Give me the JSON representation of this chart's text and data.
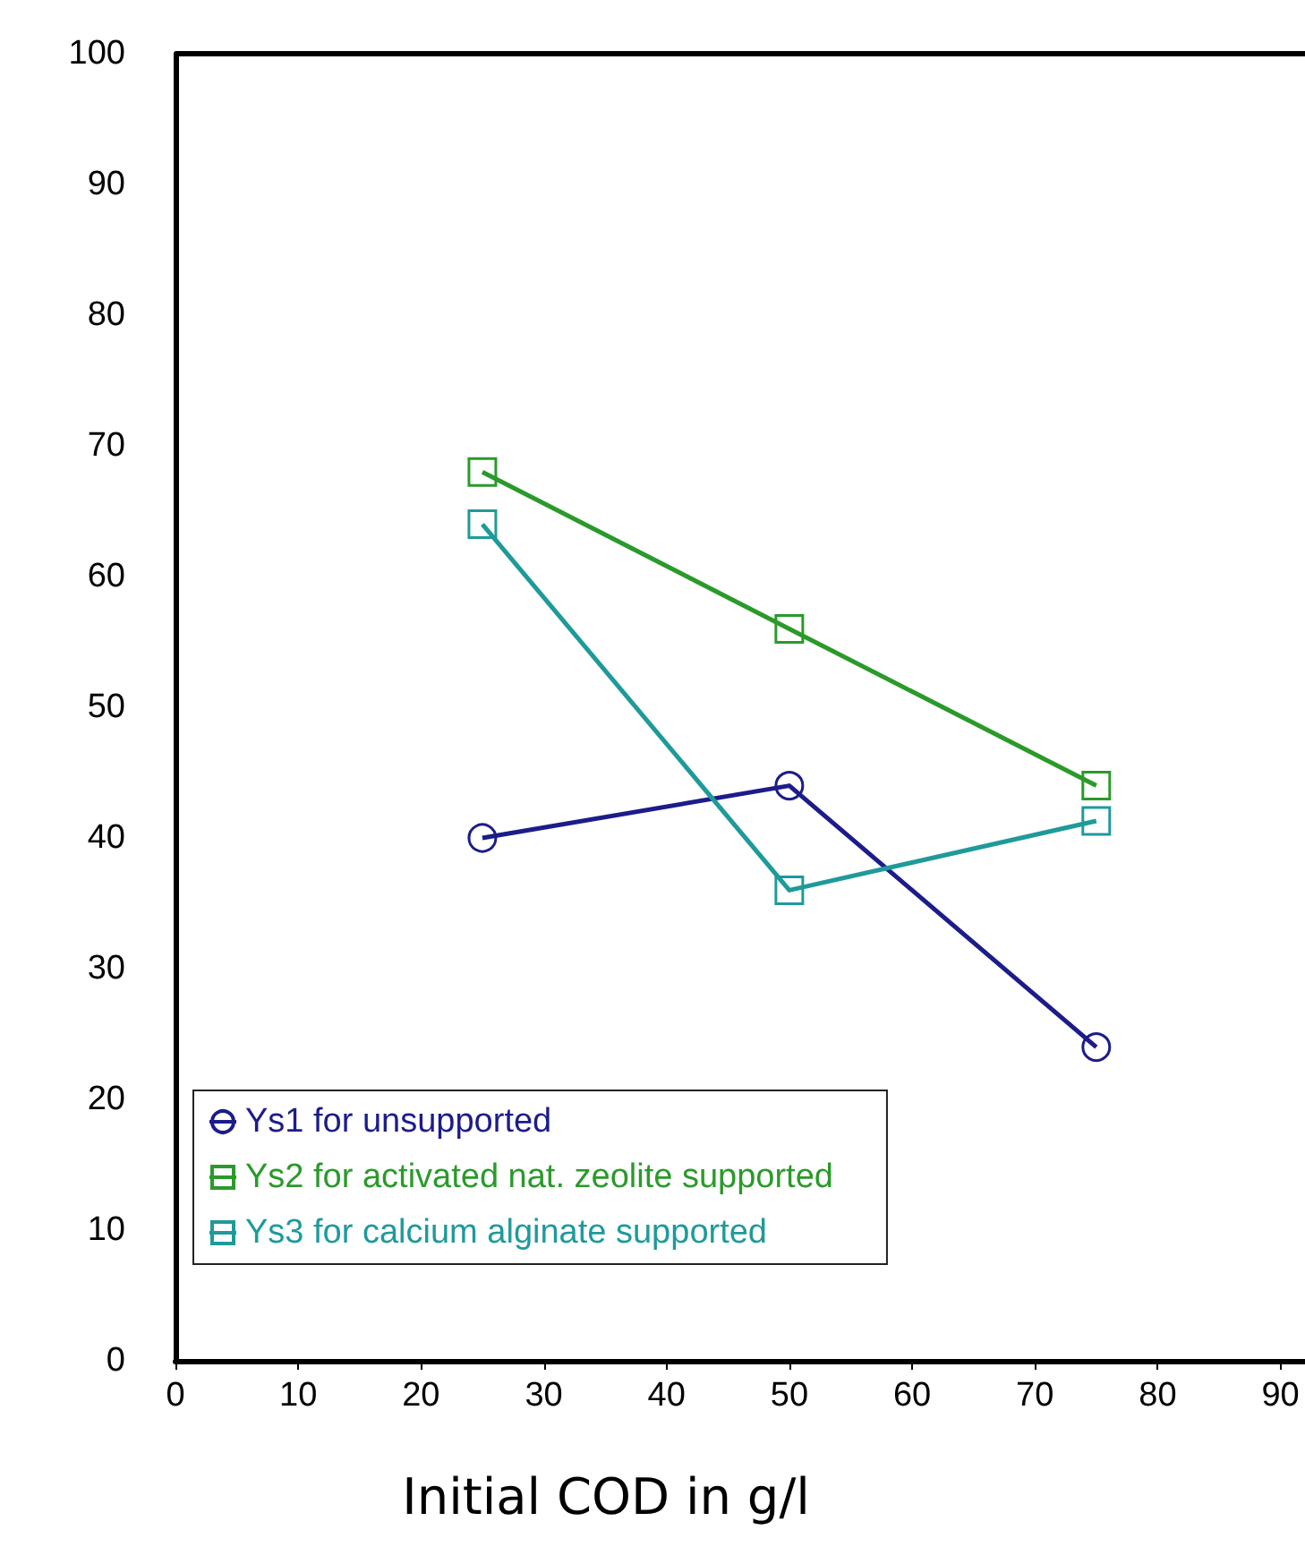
{
  "chart_data": {
    "type": "line",
    "xlabel": "Initial COD in g/l",
    "x": [
      25,
      50,
      75
    ],
    "series": [
      {
        "name": "Ys1 for unsupported",
        "color": "#1c1c8a",
        "values": [
          40,
          44,
          24
        ],
        "marker": "circle"
      },
      {
        "name": "Ys2 for activated nat. zeolite supported",
        "color": "#2a9a2a",
        "values": [
          68,
          56,
          44
        ],
        "marker": "square"
      },
      {
        "name": "Ys3 for calcium alginate supported",
        "color": "#1f9a9a",
        "values": [
          64,
          36,
          41.3
        ],
        "marker": "square"
      }
    ],
    "xlim": [
      0,
      92
    ],
    "xticks": [
      0,
      10,
      20,
      30,
      40,
      50,
      60,
      70,
      80,
      90
    ],
    "ylim": [
      0,
      100
    ],
    "yticks": [
      0,
      10,
      20,
      30,
      40,
      50,
      60,
      70,
      80,
      90,
      100
    ],
    "grid": false,
    "legend": "bottom left",
    "line_style": "solid"
  }
}
